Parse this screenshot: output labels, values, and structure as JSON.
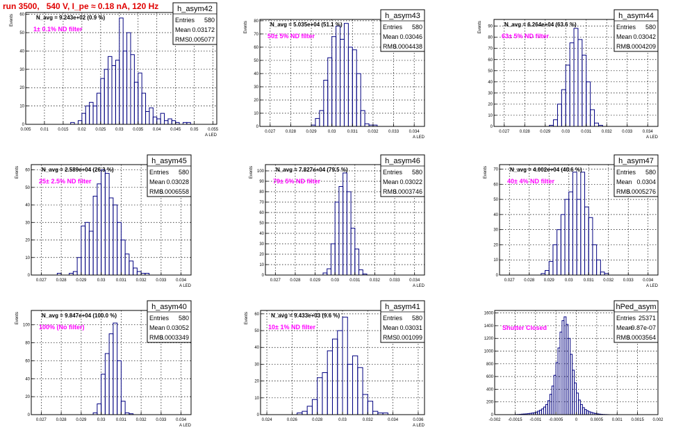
{
  "header": {
    "title": "run 3500,   540 V, I_pe ≈ 0.18 nA, 120 Hz"
  },
  "colors": {
    "hist": "#000080",
    "annotation": "#ff00ff",
    "title": "#e00000",
    "grid": "#000000"
  },
  "chart_data": [
    {
      "type": "bar",
      "name": "h_asym42",
      "ylabel": "Events",
      "xlabel": "A_LED",
      "navg": "N_avg = 9.243e+02 (0.9 %)",
      "filter": "1± 0.1% ND filter",
      "stats": [
        [
          "Entries",
          "580"
        ],
        [
          "Mean",
          "0.03172"
        ],
        [
          "RMS",
          "0.005077"
        ]
      ],
      "xlim": [
        0.005,
        0.056
      ],
      "ylim": [
        0,
        61
      ],
      "xticks": [
        0.005,
        0.01,
        0.015,
        0.02,
        0.025,
        0.03,
        0.035,
        0.04,
        0.045,
        0.05,
        0.055
      ],
      "xtick_labels": [
        "0.005",
        "0.01",
        "0.015",
        "0.02",
        "0.025",
        "0.03",
        "0.035",
        "0.04",
        "0.045",
        "0.05",
        "0.055"
      ],
      "yticks": [
        0,
        10,
        20,
        30,
        40,
        50,
        60
      ],
      "bins_start": 0.017,
      "bin_width": 0.001,
      "values": [
        1,
        0,
        2,
        6,
        10,
        12,
        10,
        17,
        25,
        30,
        37,
        32,
        35,
        58,
        40,
        50,
        38,
        23,
        28,
        17,
        7,
        9,
        4,
        3,
        6,
        2,
        3,
        2,
        1,
        0,
        1,
        1
      ]
    },
    {
      "type": "bar",
      "name": "h_asym43",
      "ylabel": "Events",
      "xlabel": "A_LED",
      "navg": "N_avg = 5.035e+04 (51.1 %)",
      "filter": "50± 5% ND filter",
      "stats": [
        [
          "Entries",
          "580"
        ],
        [
          "Mean",
          "0.03046"
        ],
        [
          "RMS",
          "0.0004438"
        ]
      ],
      "xlim": [
        0.0265,
        0.0345
      ],
      "ylim": [
        0,
        81
      ],
      "xticks": [
        0.027,
        0.028,
        0.029,
        0.03,
        0.031,
        0.032,
        0.033,
        0.034
      ],
      "xtick_labels": [
        "0.027",
        "0.028",
        "0.029",
        "0.03",
        "0.031",
        "0.032",
        "0.033",
        "0.034"
      ],
      "yticks": [
        0,
        10,
        20,
        30,
        40,
        50,
        60,
        70,
        80
      ],
      "bins_start": 0.029,
      "bin_width": 0.0002,
      "values": [
        1,
        6,
        12,
        35,
        52,
        68,
        76,
        66,
        78,
        60,
        58,
        40,
        12,
        2,
        1,
        1
      ]
    },
    {
      "type": "bar",
      "name": "h_asym44",
      "ylabel": "Events",
      "xlabel": "A_LED",
      "navg": "N_avg = 6.264e+04 (63.6 %)",
      "filter": "63± 5% ND filter",
      "stats": [
        [
          "Entries",
          "580"
        ],
        [
          "Mean",
          "0.03042"
        ],
        [
          "RMS",
          "0.0004209"
        ]
      ],
      "xlim": [
        0.0265,
        0.0345
      ],
      "ylim": [
        0,
        96
      ],
      "xticks": [
        0.027,
        0.028,
        0.029,
        0.03,
        0.031,
        0.032,
        0.033,
        0.034
      ],
      "xtick_labels": [
        "0.027",
        "0.028",
        "0.029",
        "0.03",
        "0.031",
        "0.032",
        "0.033",
        "0.034"
      ],
      "yticks": [
        0,
        10,
        20,
        30,
        40,
        50,
        60,
        70,
        80,
        90
      ],
      "bins_start": 0.0292,
      "bin_width": 0.0002,
      "values": [
        1,
        6,
        20,
        33,
        55,
        75,
        88,
        78,
        64,
        40,
        15,
        3,
        1
      ]
    },
    {
      "type": "bar",
      "name": "h_asym45",
      "ylabel": "Events",
      "xlabel": "A_LED",
      "navg": "N_avg = 2.589e+04 (26.3 %)",
      "filter": "25± 2.5% ND filter",
      "stats": [
        [
          "Entries",
          "580"
        ],
        [
          "Mean",
          "0.03028"
        ],
        [
          "RMS",
          "0.0006558"
        ]
      ],
      "xlim": [
        0.0265,
        0.0345
      ],
      "ylim": [
        0,
        63
      ],
      "xticks": [
        0.027,
        0.028,
        0.029,
        0.03,
        0.031,
        0.032,
        0.033,
        0.034
      ],
      "xtick_labels": [
        "0.027",
        "0.028",
        "0.029",
        "0.03",
        "0.031",
        "0.032",
        "0.033",
        "0.034"
      ],
      "yticks": [
        0,
        10,
        20,
        30,
        40,
        50,
        60
      ],
      "bins_start": 0.0278,
      "bin_width": 0.0002,
      "values": [
        1,
        0,
        0,
        1,
        2,
        10,
        28,
        30,
        25,
        45,
        52,
        60,
        58,
        44,
        40,
        30,
        20,
        12,
        8,
        4,
        2,
        1,
        1
      ]
    },
    {
      "type": "bar",
      "name": "h_asym46",
      "ylabel": "Events",
      "xlabel": "A_LED",
      "navg": "N_avg = 7.827e+04 (79.5 %)",
      "filter": "79± 5% ND filter",
      "stats": [
        [
          "Entries",
          "580"
        ],
        [
          "Mean",
          "0.03022"
        ],
        [
          "RMS",
          "0.0003746"
        ]
      ],
      "xlim": [
        0.0265,
        0.0345
      ],
      "ylim": [
        0,
        106
      ],
      "xticks": [
        0.027,
        0.028,
        0.029,
        0.03,
        0.031,
        0.032,
        0.033,
        0.034
      ],
      "xtick_labels": [
        "0.027",
        "0.028",
        "0.029",
        "0.03",
        "0.031",
        "0.032",
        "0.033",
        "0.034"
      ],
      "yticks": [
        0,
        10,
        20,
        30,
        40,
        50,
        60,
        70,
        80,
        90,
        100
      ],
      "bins_start": 0.0294,
      "bin_width": 0.0002,
      "values": [
        2,
        6,
        30,
        70,
        85,
        98,
        80,
        45,
        25,
        5,
        1
      ]
    },
    {
      "type": "bar",
      "name": "h_asym47",
      "ylabel": "Events",
      "xlabel": "A_LED",
      "navg": "N_avg = 4.002e+04 (40.6 %)",
      "filter": "40± 4% ND filter",
      "stats": [
        [
          "Entries",
          "580"
        ],
        [
          "Mean",
          "0.0304"
        ],
        [
          "RMS",
          "0.0005276"
        ]
      ],
      "xlim": [
        0.0265,
        0.0345
      ],
      "ylim": [
        0,
        73
      ],
      "xticks": [
        0.027,
        0.028,
        0.029,
        0.03,
        0.031,
        0.032,
        0.033,
        0.034
      ],
      "xtick_labels": [
        "0.027",
        "0.028",
        "0.029",
        "0.03",
        "0.031",
        "0.032",
        "0.033",
        "0.034"
      ],
      "yticks": [
        0,
        10,
        20,
        30,
        40,
        50,
        60,
        70
      ],
      "bins_start": 0.0286,
      "bin_width": 0.0002,
      "values": [
        1,
        3,
        9,
        20,
        30,
        40,
        50,
        55,
        68,
        50,
        68,
        45,
        38,
        20,
        10,
        2,
        1
      ]
    },
    {
      "type": "bar",
      "name": "h_asym40",
      "ylabel": "Events",
      "xlabel": "A_LED",
      "navg": "N_avg = 9.847e+04 (100.0 %)",
      "filter": "100% (No filter)",
      "stats": [
        [
          "Entries",
          "580"
        ],
        [
          "Mean",
          "0.03052"
        ],
        [
          "RMS",
          "0.0003349"
        ]
      ],
      "xlim": [
        0.0265,
        0.0345
      ],
      "ylim": [
        0,
        116
      ],
      "xticks": [
        0.027,
        0.028,
        0.029,
        0.03,
        0.031,
        0.032,
        0.033,
        0.034
      ],
      "xtick_labels": [
        "0.027",
        "0.028",
        "0.029",
        "0.03",
        "0.031",
        "0.032",
        "0.033",
        "0.034"
      ],
      "yticks": [
        0,
        20,
        40,
        60,
        80,
        100
      ],
      "bins_start": 0.0296,
      "bin_width": 0.0002,
      "values": [
        2,
        12,
        45,
        68,
        90,
        102,
        60,
        15,
        2,
        1
      ]
    },
    {
      "type": "bar",
      "name": "h_asym41",
      "ylabel": "Events",
      "xlabel": "A_LED",
      "navg": "N_avg = 9.433e+03 (9.6 %)",
      "filter": "10± 1% ND filter",
      "stats": [
        [
          "Entries",
          "580"
        ],
        [
          "Mean",
          "0.03031"
        ],
        [
          "RMS",
          "0.001099"
        ]
      ],
      "xlim": [
        0.0235,
        0.0365
      ],
      "ylim": [
        0,
        62
      ],
      "xticks": [
        0.024,
        0.026,
        0.028,
        0.03,
        0.032,
        0.034,
        0.036
      ],
      "xtick_labels": [
        "0.024",
        "0.026",
        "0.028",
        "0.03",
        "0.032",
        "0.034",
        "0.036"
      ],
      "yticks": [
        0,
        10,
        20,
        30,
        40,
        50,
        60
      ],
      "bins_start": 0.0264,
      "bin_width": 0.0004,
      "values": [
        1,
        2,
        5,
        9,
        22,
        25,
        38,
        45,
        50,
        58,
        30,
        35,
        28,
        12,
        8,
        2,
        1,
        1
      ]
    },
    {
      "type": "bar",
      "name": "hPed_asym",
      "ylabel": "",
      "xlabel": "",
      "navg": "",
      "filter": "Shutter Closed",
      "stats": [
        [
          "Entries",
          "25371"
        ],
        [
          "Mean",
          "-9.87e-07"
        ],
        [
          "RMS",
          "0.0003564"
        ]
      ],
      "xlim": [
        -0.002,
        0.002
      ],
      "ylim": [
        0,
        1640
      ],
      "xticks": [
        -0.002,
        -0.0015,
        -0.001,
        -0.0005,
        0,
        0.0005,
        0.001,
        0.0015,
        0.002
      ],
      "xtick_labels": [
        "-0.002",
        "-0.0015",
        "-0.001",
        "-0.0005",
        "0",
        "0.0005",
        "0.001",
        "0.0015",
        "0.002"
      ],
      "yticks": [
        0,
        200,
        400,
        600,
        800,
        1000,
        1200,
        1400,
        1600
      ],
      "bins_start": -0.0015,
      "bin_width": 5e-05,
      "values": [
        2,
        3,
        5,
        8,
        10,
        12,
        15,
        20,
        25,
        30,
        40,
        55,
        70,
        90,
        120,
        160,
        220,
        320,
        450,
        620,
        820,
        1050,
        1300,
        1480,
        1540,
        1420,
        1200,
        950,
        700,
        500,
        340,
        230,
        160,
        110,
        80,
        60,
        45,
        35,
        25,
        18,
        12,
        8,
        5,
        3,
        2,
        1
      ]
    }
  ]
}
